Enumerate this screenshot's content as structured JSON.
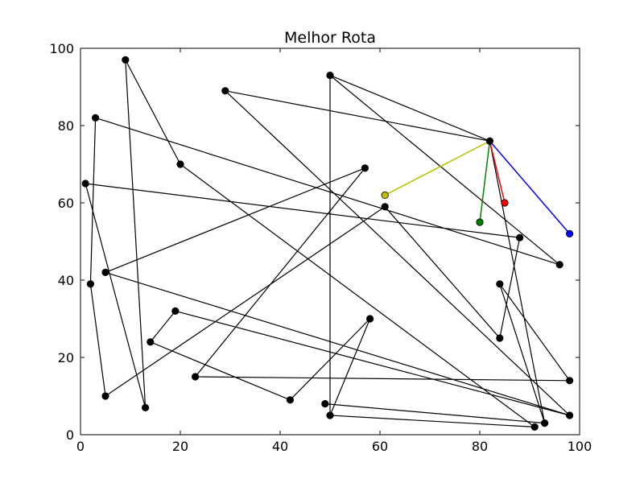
{
  "chart_data": {
    "type": "line",
    "title": "Melhor Rota",
    "xlim": [
      0,
      100
    ],
    "ylim": [
      0,
      100
    ],
    "xticks": [
      0,
      20,
      40,
      60,
      80,
      100
    ],
    "yticks": [
      0,
      20,
      40,
      60,
      80,
      100
    ],
    "grid": false,
    "route": [
      [
        82,
        76
      ],
      [
        29,
        89
      ],
      [
        98,
        5
      ],
      [
        5,
        42
      ],
      [
        57,
        69
      ],
      [
        23,
        15
      ],
      [
        98,
        14
      ],
      [
        84,
        39
      ],
      [
        93,
        3
      ],
      [
        82,
        76
      ],
      [
        50,
        93
      ],
      [
        96,
        44
      ],
      [
        3,
        82
      ],
      [
        2,
        39
      ],
      [
        5,
        10
      ],
      [
        61,
        59
      ],
      [
        84,
        25
      ],
      [
        88,
        51
      ],
      [
        1,
        65
      ],
      [
        13,
        7
      ],
      [
        9,
        97
      ],
      [
        20,
        70
      ],
      [
        91,
        2
      ],
      [
        50,
        5
      ],
      [
        58,
        30
      ],
      [
        42,
        9
      ],
      [
        14,
        24
      ],
      [
        19,
        32
      ],
      [
        98,
        5
      ]
    ],
    "vertical_segment": [
      [
        50,
        93
      ],
      [
        50,
        5
      ]
    ],
    "extra_segment": [
      [
        49,
        8
      ],
      [
        93,
        3
      ]
    ],
    "highlight_segments": [
      {
        "from": [
          82,
          76
        ],
        "to": [
          61,
          62
        ],
        "color": "#bfbf00"
      },
      {
        "from": [
          82,
          76
        ],
        "to": [
          80,
          55
        ],
        "color": "#008000"
      },
      {
        "from": [
          82,
          76
        ],
        "to": [
          85,
          60
        ],
        "color": "#ff0000"
      },
      {
        "from": [
          82,
          76
        ],
        "to": [
          98,
          52
        ],
        "color": "#0000ff"
      }
    ],
    "black_points": [
      [
        9,
        97
      ],
      [
        50,
        93
      ],
      [
        29,
        89
      ],
      [
        3,
        82
      ],
      [
        82,
        76
      ],
      [
        20,
        70
      ],
      [
        57,
        69
      ],
      [
        1,
        65
      ],
      [
        61,
        59
      ],
      [
        88,
        51
      ],
      [
        96,
        44
      ],
      [
        5,
        42
      ],
      [
        2,
        39
      ],
      [
        84,
        39
      ],
      [
        19,
        32
      ],
      [
        58,
        30
      ],
      [
        84,
        25
      ],
      [
        14,
        24
      ],
      [
        23,
        15
      ],
      [
        98,
        14
      ],
      [
        5,
        10
      ],
      [
        42,
        9
      ],
      [
        49,
        8
      ],
      [
        13,
        7
      ],
      [
        50,
        5
      ],
      [
        98,
        5
      ],
      [
        93,
        3
      ],
      [
        91,
        2
      ]
    ],
    "colored_points": [
      {
        "x": 61,
        "y": 62,
        "color": "#bfbf00"
      },
      {
        "x": 80,
        "y": 55,
        "color": "#008000"
      },
      {
        "x": 85,
        "y": 60,
        "color": "#ff0000"
      },
      {
        "x": 98,
        "y": 52,
        "color": "#0000ff"
      }
    ],
    "line_color": "#000000"
  }
}
